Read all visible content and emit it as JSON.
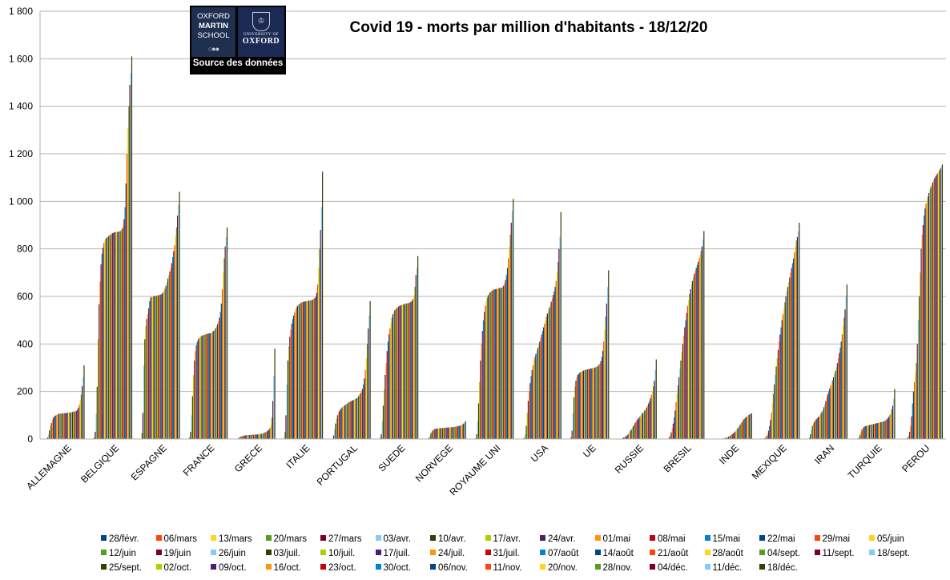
{
  "chart_data": {
    "type": "bar",
    "title": "Covid 19 - morts par million d'habitants - 18/12/20",
    "xlabel": "",
    "ylabel": "",
    "ylim": [
      0,
      1800
    ],
    "yticks": [
      "0",
      "200",
      "400",
      "600",
      "800",
      "1 000",
      "1 200",
      "1 400",
      "1 600",
      "1 800"
    ],
    "grid": "horizontal",
    "legend_position": "bottom",
    "categories": [
      "ALLEMAGNE",
      "BELGIQUE",
      "ESPAGNE",
      "FRANCE",
      "GRECE",
      "ITALIE",
      "PORTUGAL",
      "SUEDE",
      "NORVEGE",
      "ROYAUME UNI",
      "USA",
      "UE",
      "RUSSIE",
      "BRESIL",
      "INDE",
      "MEXIQUE",
      "IRAN",
      "TURQUIE",
      "PEROU"
    ],
    "series_names": [
      "28/févr.",
      "06/mars",
      "13/mars",
      "20/mars",
      "27/mars",
      "03/avr.",
      "10/avr.",
      "17/avr.",
      "24/avr.",
      "01/mai",
      "08/mai",
      "15/mai",
      "22/mai",
      "29/mai",
      "05/juin",
      "12/juin",
      "19/juin",
      "26/juin",
      "03/juil.",
      "10/juil.",
      "17/juil.",
      "24/juil.",
      "31/juil.",
      "07/août",
      "14/août",
      "21/août",
      "28/août",
      "04/sept.",
      "11/sept.",
      "18/sept.",
      "25/sept.",
      "02/oct.",
      "09/oct.",
      "16/oct.",
      "23/oct.",
      "30/oct.",
      "06/nov.",
      "11/nov.",
      "20/nov.",
      "28/nov.",
      "04/déc.",
      "11/déc.",
      "18/déc."
    ],
    "series_colors": [
      "#004586",
      "#ff420e",
      "#ffd320",
      "#579d1c",
      "#7e0021",
      "#83caff",
      "#314004",
      "#aecf00",
      "#4b1f6f",
      "#ff950e",
      "#c5000b",
      "#0084d1",
      "#004586",
      "#ff420e",
      "#ffd320",
      "#579d1c",
      "#7e0021",
      "#83caff",
      "#314004",
      "#aecf00",
      "#4b1f6f",
      "#ff950e",
      "#c5000b",
      "#0084d1",
      "#004586",
      "#ff420e",
      "#ffd320",
      "#579d1c",
      "#7e0021",
      "#83caff",
      "#314004",
      "#aecf00",
      "#4b1f6f",
      "#ff950e",
      "#c5000b",
      "#0084d1",
      "#004586",
      "#ff420e",
      "#ffd320",
      "#579d1c",
      "#7e0021",
      "#83caff",
      "#314004"
    ],
    "values_by_country": {
      "ALLEMAGNE": [
        0,
        0,
        0,
        1,
        6,
        19,
        36,
        53,
        67,
        81,
        89,
        95,
        98,
        101,
        103,
        105,
        106,
        107,
        107,
        108,
        108,
        108,
        109,
        109,
        110,
        110,
        111,
        111,
        112,
        113,
        114,
        115,
        116,
        117,
        119,
        123,
        132,
        143,
        162,
        187,
        222,
        260,
        310
      ],
      "BELGIQUE": [
        0,
        0,
        0,
        7,
        30,
        106,
        220,
        420,
        567,
        663,
        735,
        780,
        805,
        825,
        835,
        843,
        848,
        851,
        854,
        857,
        860,
        864,
        866,
        868,
        870,
        871,
        871,
        872,
        872,
        873,
        875,
        878,
        885,
        895,
        925,
        975,
        1075,
        1200,
        1310,
        1400,
        1490,
        1540,
        1610
      ],
      "ESPAGNE": [
        0,
        0,
        1,
        25,
        110,
        310,
        420,
        475,
        505,
        525,
        550,
        580,
        595,
        598,
        600,
        601,
        602,
        603,
        603,
        604,
        605,
        605,
        607,
        609,
        612,
        618,
        624,
        633,
        645,
        660,
        675,
        690,
        705,
        720,
        740,
        765,
        790,
        815,
        855,
        890,
        940,
        985,
        1040
      ],
      "FRANCE": [
        0,
        0,
        1,
        7,
        30,
        100,
        180,
        270,
        330,
        370,
        395,
        410,
        420,
        425,
        430,
        433,
        435,
        437,
        438,
        440,
        441,
        442,
        443,
        444,
        445,
        446,
        448,
        451,
        455,
        460,
        466,
        474,
        483,
        495,
        510,
        535,
        570,
        630,
        700,
        760,
        810,
        850,
        890
      ],
      "GRECE": [
        0,
        0,
        0,
        1,
        3,
        6,
        9,
        11,
        12,
        13,
        14,
        15,
        16,
        16,
        17,
        17,
        17,
        18,
        18,
        18,
        18,
        18,
        19,
        19,
        19,
        20,
        20,
        21,
        22,
        23,
        24,
        26,
        28,
        30,
        33,
        36,
        40,
        48,
        60,
        90,
        160,
        265,
        380
      ],
      "ITALIE": [
        0,
        0,
        5,
        30,
        100,
        230,
        330,
        390,
        430,
        460,
        485,
        505,
        520,
        533,
        545,
        553,
        560,
        565,
        568,
        571,
        574,
        576,
        577,
        578,
        579,
        580,
        580,
        581,
        582,
        583,
        584,
        585,
        587,
        590,
        593,
        600,
        615,
        650,
        720,
        800,
        880,
        975,
        1125
      ],
      "PORTUGAL": [
        0,
        0,
        0,
        2,
        15,
        40,
        65,
        85,
        100,
        110,
        118,
        124,
        130,
        134,
        137,
        140,
        143,
        146,
        149,
        152,
        155,
        157,
        159,
        161,
        163,
        165,
        167,
        169,
        172,
        176,
        181,
        187,
        193,
        201,
        212,
        230,
        255,
        290,
        340,
        400,
        465,
        520,
        580
      ],
      "SUEDE": [
        0,
        0,
        1,
        6,
        20,
        75,
        140,
        210,
        270,
        320,
        370,
        410,
        440,
        465,
        490,
        510,
        525,
        535,
        542,
        547,
        551,
        555,
        558,
        560,
        562,
        564,
        566,
        567,
        568,
        569,
        570,
        571,
        572,
        573,
        575,
        578,
        582,
        590,
        605,
        640,
        690,
        720,
        770
      ],
      "NORVEGE": [
        0,
        0,
        0,
        1,
        5,
        15,
        25,
        32,
        36,
        40,
        42,
        43,
        44,
        44,
        45,
        45,
        46,
        46,
        46,
        47,
        47,
        47,
        48,
        48,
        48,
        49,
        49,
        49,
        50,
        50,
        51,
        52,
        52,
        53,
        54,
        55,
        56,
        57,
        59,
        62,
        65,
        69,
        75
      ],
      "ROYAUME UNI": [
        0,
        0,
        0,
        3,
        20,
        75,
        150,
        240,
        330,
        400,
        455,
        500,
        535,
        560,
        580,
        595,
        605,
        612,
        617,
        621,
        624,
        627,
        629,
        630,
        631,
        632,
        633,
        634,
        635,
        636,
        637,
        640,
        645,
        655,
        670,
        690,
        720,
        760,
        810,
        860,
        910,
        960,
        1010
      ],
      "USA": [
        0,
        0,
        0,
        1,
        5,
        20,
        55,
        110,
        160,
        200,
        235,
        265,
        290,
        310,
        330,
        345,
        358,
        370,
        383,
        396,
        410,
        425,
        440,
        455,
        470,
        485,
        500,
        515,
        528,
        540,
        553,
        565,
        578,
        592,
        607,
        622,
        640,
        665,
        700,
        745,
        800,
        850,
        955
      ],
      "UE": [
        0,
        0,
        1,
        8,
        35,
        110,
        175,
        220,
        245,
        260,
        270,
        275,
        279,
        282,
        284,
        286,
        288,
        290,
        291,
        292,
        293,
        294,
        295,
        296,
        297,
        298,
        299,
        300,
        301,
        303,
        305,
        308,
        312,
        318,
        328,
        345,
        372,
        410,
        460,
        515,
        570,
        640,
        710
      ],
      "RUSSIE": [
        0,
        0,
        0,
        0,
        0,
        1,
        2,
        4,
        6,
        8,
        10,
        13,
        17,
        22,
        28,
        34,
        40,
        47,
        54,
        61,
        68,
        74,
        80,
        85,
        90,
        95,
        100,
        105,
        110,
        115,
        120,
        126,
        133,
        141,
        150,
        160,
        172,
        186,
        203,
        222,
        245,
        290,
        335
      ],
      "BRESIL": [
        0,
        0,
        0,
        0,
        1,
        3,
        8,
        16,
        28,
        45,
        65,
        90,
        120,
        155,
        190,
        225,
        260,
        295,
        330,
        365,
        400,
        435,
        470,
        500,
        530,
        560,
        585,
        610,
        630,
        650,
        665,
        680,
        695,
        708,
        720,
        732,
        745,
        760,
        775,
        792,
        810,
        840,
        875
      ],
      "INDE": [
        0,
        0,
        0,
        0,
        0,
        0,
        0,
        0,
        1,
        1,
        1,
        2,
        2,
        3,
        4,
        5,
        6,
        8,
        10,
        12,
        14,
        17,
        20,
        24,
        28,
        32,
        37,
        42,
        48,
        54,
        60,
        66,
        72,
        78,
        83,
        87,
        91,
        95,
        98,
        101,
        104,
        106,
        108
      ],
      "MEXIQUE": [
        0,
        0,
        0,
        0,
        0,
        1,
        3,
        6,
        12,
        20,
        35,
        55,
        80,
        110,
        150,
        190,
        230,
        270,
        305,
        340,
        375,
        410,
        440,
        470,
        500,
        525,
        550,
        575,
        600,
        620,
        640,
        660,
        680,
        700,
        720,
        740,
        760,
        785,
        810,
        835,
        850,
        875,
        910
      ],
      "IRAN": [
        0,
        0,
        1,
        5,
        20,
        40,
        55,
        65,
        72,
        78,
        83,
        88,
        92,
        96,
        101,
        108,
        116,
        124,
        134,
        146,
        160,
        175,
        188,
        200,
        212,
        224,
        236,
        248,
        260,
        273,
        287,
        302,
        320,
        340,
        362,
        385,
        410,
        440,
        475,
        510,
        545,
        600,
        650
      ],
      "TURQUIE": [
        0,
        0,
        0,
        1,
        3,
        8,
        18,
        30,
        40,
        46,
        50,
        53,
        55,
        56,
        57,
        58,
        59,
        60,
        61,
        62,
        63,
        64,
        65,
        66,
        67,
        68,
        69,
        70,
        71,
        72,
        73,
        75,
        77,
        80,
        84,
        88,
        94,
        102,
        112,
        125,
        140,
        170,
        210
      ],
      "PEROU": [
        0,
        0,
        0,
        0,
        0,
        2,
        6,
        15,
        30,
        55,
        95,
        150,
        200,
        240,
        280,
        320,
        400,
        500,
        600,
        700,
        800,
        860,
        900,
        940,
        970,
        990,
        1005,
        1020,
        1035,
        1050,
        1060,
        1070,
        1080,
        1090,
        1098,
        1105,
        1112,
        1118,
        1124,
        1130,
        1138,
        1146,
        1155
      ]
    }
  },
  "header": {
    "logo_line1": "OXFORD",
    "logo_line2": "MARTIN",
    "logo_line3": "SCHOOL",
    "logo_uni_small": "UNIVERSITY OF",
    "logo_uni_big": "OXFORD",
    "logo_caption": "Source des données"
  }
}
